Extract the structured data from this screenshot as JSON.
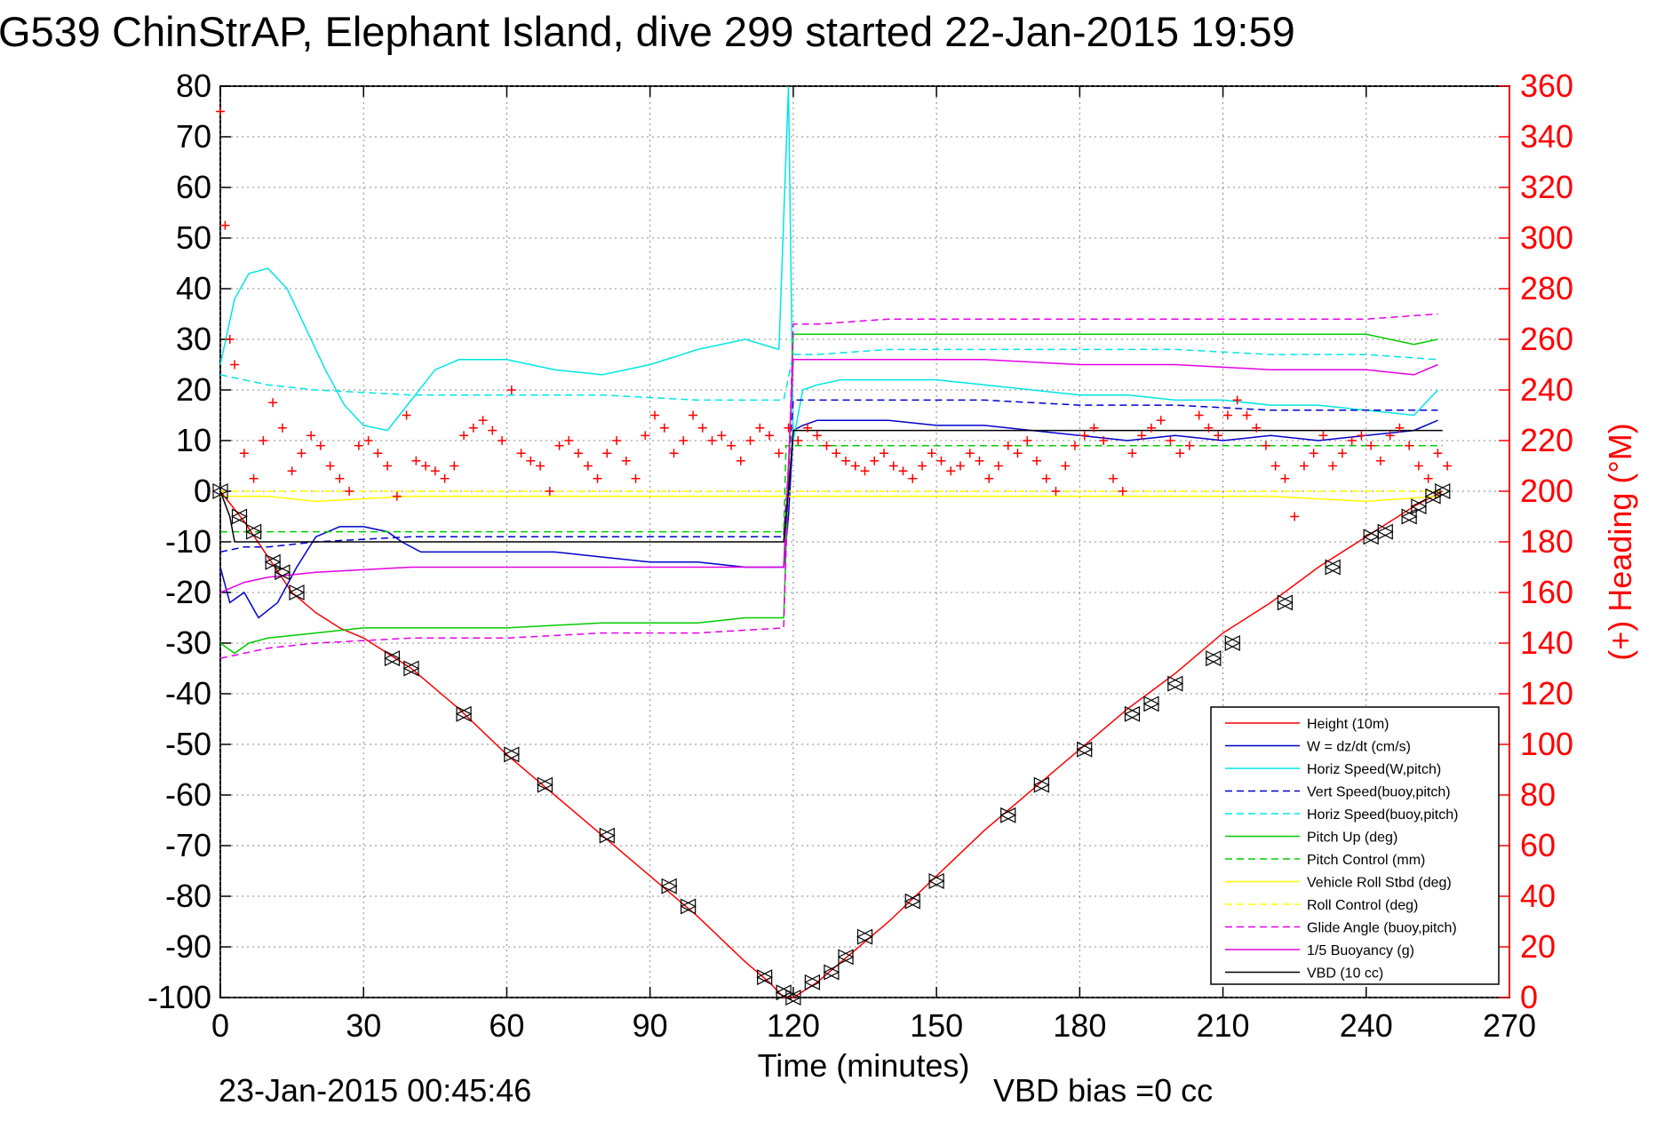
{
  "chart_data": {
    "type": "line",
    "title": "G539 ChinStrAP, Elephant Island, dive 299 started 22-Jan-2015 19:59",
    "xlabel": "Time (minutes)",
    "ylabel_right": "(+) Heading (°M)",
    "footer_left": "23-Jan-2015 00:45:46",
    "footer_right": "VBD bias =0 cc",
    "xlim": [
      0,
      270
    ],
    "ylim": [
      -100,
      80
    ],
    "y2lim": [
      0,
      360
    ],
    "x_ticks": [
      0,
      30,
      60,
      90,
      120,
      150,
      180,
      210,
      240,
      270
    ],
    "y_ticks": [
      80,
      70,
      60,
      50,
      40,
      30,
      20,
      10,
      0,
      -10,
      -20,
      -30,
      -40,
      -50,
      -60,
      -70,
      -80,
      -90,
      -100
    ],
    "y2_ticks": [
      360,
      340,
      320,
      300,
      280,
      260,
      240,
      220,
      200,
      180,
      160,
      140,
      120,
      100,
      80,
      60,
      40,
      20,
      0
    ],
    "x_tick_labels": [
      "0",
      "30",
      "60",
      "90",
      "120",
      "150",
      "180",
      "210",
      "240",
      "270"
    ],
    "y_tick_labels": [
      "80",
      "70",
      "60",
      "50",
      "40",
      "30",
      "20",
      "10",
      "0",
      "-10",
      "-20",
      "-30",
      "-40",
      "-50",
      "-60",
      "-70",
      "-80",
      "-90",
      "-100"
    ],
    "y2_tick_labels": [
      "360",
      "340",
      "320",
      "300",
      "280",
      "260",
      "240",
      "220",
      "200",
      "180",
      "160",
      "140",
      "120",
      "100",
      "80",
      "60",
      "40",
      "20",
      "0"
    ],
    "grid": true,
    "legend_position": "bottom-right",
    "colors": {
      "red": "#ff0000",
      "blue": "#0000cc",
      "cyan": "#00e5e5",
      "green": "#00cc00",
      "yellow": "#ffff00",
      "magenta": "#e600e6",
      "black": "#000000"
    },
    "series": [
      {
        "name": "Height (10m)",
        "color": "#ff0000",
        "dash": false,
        "x": [
          0,
          5,
          10,
          15,
          20,
          25,
          30,
          40,
          50,
          60,
          70,
          80,
          90,
          100,
          110,
          115,
          118,
          120,
          125,
          130,
          140,
          150,
          160,
          170,
          180,
          190,
          200,
          210,
          220,
          230,
          240,
          250,
          256
        ],
        "y": [
          0,
          -6,
          -13,
          -20,
          -24,
          -27,
          -29,
          -35,
          -43,
          -52,
          -60,
          -68,
          -76,
          -84,
          -93,
          -97,
          -100,
          -100,
          -97,
          -93,
          -85,
          -76,
          -67,
          -59,
          -51,
          -43,
          -36,
          -28,
          -22,
          -15,
          -9,
          -3,
          0
        ]
      },
      {
        "name": "W = dz/dt (cm/s)",
        "color": "#0000cc",
        "dash": false,
        "x": [
          0,
          2,
          5,
          8,
          12,
          16,
          20,
          25,
          30,
          35,
          38,
          42,
          45,
          50,
          55,
          60,
          70,
          80,
          90,
          100,
          110,
          116,
          118,
          119,
          120,
          122,
          125,
          130,
          140,
          150,
          160,
          170,
          180,
          190,
          200,
          210,
          220,
          230,
          240,
          250,
          255
        ],
        "y": [
          -15,
          -22,
          -20,
          -25,
          -22,
          -15,
          -9,
          -7,
          -7,
          -8,
          -10,
          -12,
          -12,
          -12,
          -12,
          -12,
          -12,
          -13,
          -14,
          -14,
          -15,
          -15,
          -15,
          -5,
          12,
          13,
          14,
          14,
          14,
          13,
          13,
          12,
          11,
          10,
          11,
          10,
          11,
          10,
          11,
          12,
          14
        ]
      },
      {
        "name": "Horiz Speed(W,pitch)",
        "color": "#00e5e5",
        "dash": false,
        "x": [
          0,
          3,
          6,
          10,
          14,
          18,
          22,
          26,
          30,
          35,
          40,
          45,
          50,
          60,
          70,
          80,
          90,
          100,
          110,
          117,
          119,
          120,
          122,
          125,
          130,
          140,
          150,
          160,
          170,
          180,
          190,
          200,
          210,
          220,
          230,
          240,
          250,
          255
        ],
        "y": [
          25,
          38,
          43,
          44,
          40,
          32,
          24,
          17,
          13,
          12,
          18,
          24,
          26,
          26,
          24,
          23,
          25,
          28,
          30,
          28,
          80,
          10,
          20,
          21,
          22,
          22,
          22,
          21,
          20,
          19,
          19,
          18,
          18,
          17,
          17,
          16,
          15,
          20
        ]
      },
      {
        "name": "Vert Speed(buoy,pitch)",
        "color": "#0000cc",
        "dash": true,
        "x": [
          0,
          5,
          10,
          20,
          40,
          60,
          80,
          100,
          118,
          120,
          125,
          140,
          160,
          180,
          200,
          220,
          240,
          255
        ],
        "y": [
          -12,
          -11,
          -11,
          -10,
          -9,
          -9,
          -9,
          -9,
          -9,
          18,
          18,
          18,
          18,
          17,
          17,
          16,
          16,
          16
        ]
      },
      {
        "name": "Horiz Speed(buoy,pitch)",
        "color": "#00e5e5",
        "dash": true,
        "x": [
          0,
          5,
          10,
          20,
          40,
          60,
          80,
          100,
          118,
          120,
          125,
          140,
          160,
          180,
          200,
          220,
          240,
          255
        ],
        "y": [
          23,
          22,
          21,
          20,
          19,
          19,
          19,
          18,
          18,
          27,
          27,
          28,
          28,
          28,
          28,
          27,
          27,
          26
        ]
      },
      {
        "name": "Pitch Up (deg)",
        "color": "#00cc00",
        "dash": false,
        "x": [
          0,
          3,
          6,
          10,
          20,
          30,
          40,
          60,
          80,
          100,
          110,
          118,
          120,
          125,
          140,
          160,
          180,
          200,
          220,
          240,
          250,
          255
        ],
        "y": [
          -30,
          -32,
          -30,
          -29,
          -28,
          -27,
          -27,
          -27,
          -26,
          -26,
          -25,
          -25,
          31,
          31,
          31,
          31,
          31,
          31,
          31,
          31,
          29,
          30
        ]
      },
      {
        "name": "Pitch Control (mm)",
        "color": "#00cc00",
        "dash": true,
        "x": [
          0,
          118,
          118.5,
          256
        ],
        "y": [
          -8,
          -8,
          9,
          9
        ]
      },
      {
        "name": "Vehicle Roll Stbd (deg)",
        "color": "#ffff00",
        "dash": false,
        "x": [
          0,
          10,
          20,
          40,
          60,
          80,
          100,
          118,
          120,
          140,
          160,
          180,
          200,
          220,
          240,
          255
        ],
        "y": [
          -1,
          -1,
          -2,
          -1,
          -1,
          -1,
          -1,
          -1,
          -1,
          -1,
          -1,
          -1,
          -1,
          -1,
          -2,
          -1
        ]
      },
      {
        "name": "Roll Control (deg)",
        "color": "#ffff00",
        "dash": true,
        "x": [
          0,
          256
        ],
        "y": [
          0,
          0
        ]
      },
      {
        "name": "Glide Angle (buoy,pitch)",
        "color": "#e600e6",
        "dash": true,
        "x": [
          0,
          5,
          10,
          20,
          40,
          60,
          80,
          100,
          118,
          120,
          125,
          140,
          160,
          180,
          200,
          220,
          240,
          255
        ],
        "y": [
          -33,
          -32,
          -31,
          -30,
          -29,
          -29,
          -28,
          -28,
          -27,
          33,
          33,
          34,
          34,
          34,
          34,
          34,
          34,
          35
        ]
      },
      {
        "name": "1/5 Buoyancy (g)",
        "color": "#e600e6",
        "dash": false,
        "x": [
          0,
          5,
          10,
          20,
          30,
          40,
          60,
          80,
          100,
          118,
          120,
          125,
          140,
          160,
          180,
          200,
          220,
          240,
          250,
          255
        ],
        "y": [
          -20,
          -18,
          -17,
          -16,
          -15.5,
          -15,
          -15,
          -15,
          -15,
          -15,
          26,
          26,
          26,
          26,
          25,
          25,
          24,
          24,
          23,
          25
        ]
      },
      {
        "name": "VBD (10 cc)",
        "color": "#000000",
        "dash": false,
        "x": [
          0,
          2,
          3,
          118,
          119,
          120,
          250,
          256
        ],
        "y": [
          0,
          -5,
          -10,
          -10,
          0,
          12,
          12,
          12
        ]
      }
    ],
    "heading_series": {
      "name": "(+) Heading (°M)",
      "color": "#ff0000",
      "marker": "+",
      "x": [
        0,
        1,
        2,
        3,
        5,
        7,
        9,
        11,
        13,
        15,
        17,
        19,
        21,
        23,
        25,
        27,
        29,
        31,
        33,
        35,
        37,
        39,
        41,
        43,
        45,
        47,
        49,
        51,
        53,
        55,
        57,
        59,
        61,
        63,
        65,
        67,
        69,
        71,
        73,
        75,
        77,
        79,
        81,
        83,
        85,
        87,
        89,
        91,
        93,
        95,
        97,
        99,
        101,
        103,
        105,
        107,
        109,
        111,
        113,
        115,
        117,
        119,
        121,
        123,
        125,
        127,
        129,
        131,
        133,
        135,
        137,
        139,
        141,
        143,
        145,
        147,
        149,
        151,
        153,
        155,
        157,
        159,
        161,
        163,
        165,
        167,
        169,
        171,
        173,
        175,
        177,
        179,
        181,
        183,
        185,
        187,
        189,
        191,
        193,
        195,
        197,
        199,
        201,
        203,
        205,
        207,
        209,
        211,
        213,
        215,
        217,
        219,
        221,
        223,
        225,
        227,
        229,
        231,
        233,
        235,
        237,
        239,
        241,
        243,
        245,
        247,
        249,
        251,
        253,
        255,
        257
      ],
      "y": [
        350,
        305,
        260,
        250,
        215,
        205,
        220,
        235,
        225,
        208,
        215,
        222,
        218,
        210,
        205,
        200,
        218,
        220,
        215,
        210,
        198,
        230,
        212,
        210,
        208,
        205,
        210,
        222,
        225,
        228,
        224,
        220,
        240,
        215,
        212,
        210,
        200,
        218,
        220,
        215,
        210,
        205,
        215,
        220,
        212,
        205,
        222,
        230,
        225,
        215,
        220,
        230,
        225,
        220,
        222,
        218,
        212,
        220,
        225,
        222,
        215,
        225,
        220,
        225,
        222,
        218,
        215,
        212,
        210,
        208,
        212,
        215,
        210,
        208,
        205,
        210,
        215,
        212,
        208,
        210,
        215,
        212,
        205,
        210,
        218,
        215,
        220,
        212,
        205,
        200,
        210,
        218,
        222,
        225,
        220,
        205,
        200,
        215,
        222,
        225,
        228,
        220,
        215,
        218,
        230,
        225,
        222,
        230,
        236,
        230,
        225,
        218,
        210,
        205,
        190,
        210,
        215,
        222,
        210,
        215,
        220,
        222,
        218,
        212,
        222,
        225,
        218,
        210,
        205,
        215,
        210
      ]
    },
    "vbd_markers": {
      "x": [
        0,
        4,
        7,
        11,
        13,
        16,
        36,
        40,
        51,
        61,
        68,
        81,
        94,
        98,
        114,
        118,
        120,
        124,
        128,
        131,
        135,
        145,
        150,
        165,
        172,
        181,
        191,
        195,
        200,
        208,
        212,
        223,
        233,
        241,
        244,
        249,
        251,
        254,
        256
      ],
      "y": [
        0,
        -5,
        -8,
        -14,
        -16,
        -20,
        -33,
        -35,
        -44,
        -52,
        -58,
        -68,
        -78,
        -82,
        -96,
        -99,
        -100,
        -97,
        -95,
        -92,
        -88,
        -81,
        -77,
        -64,
        -58,
        -51,
        -44,
        -42,
        -38,
        -33,
        -30,
        -22,
        -15,
        -9,
        -8,
        -5,
        -3,
        -1,
        0
      ]
    }
  }
}
